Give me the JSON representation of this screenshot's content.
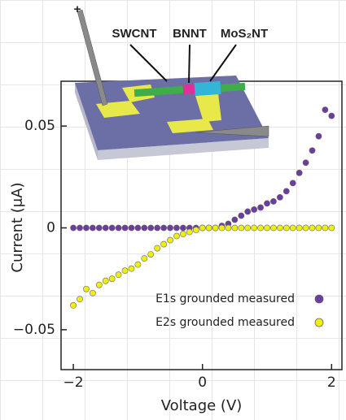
{
  "chart_data": {
    "type": "scatter",
    "xlabel": "Voltage (V)",
    "ylabel": "Current (μA)",
    "x": [
      -2.0,
      -1.9,
      -1.8,
      -1.7,
      -1.6,
      -1.5,
      -1.4,
      -1.3,
      -1.2,
      -1.1,
      -1.0,
      -0.9,
      -0.8,
      -0.7,
      -0.6,
      -0.5,
      -0.4,
      -0.3,
      -0.2,
      -0.1,
      0.0,
      0.1,
      0.2,
      0.3,
      0.4,
      0.5,
      0.6,
      0.7,
      0.8,
      0.9,
      1.0,
      1.1,
      1.2,
      1.3,
      1.4,
      1.5,
      1.6,
      1.7,
      1.8,
      1.9,
      2.0
    ],
    "series": [
      {
        "name": "E1s grounded measured",
        "color": "#6a3d9e",
        "values": [
          0,
          0,
          0,
          0,
          0,
          0,
          0,
          0,
          0,
          0,
          0,
          0,
          0,
          0,
          0,
          0,
          0,
          0,
          0,
          0,
          0,
          0,
          0,
          0.001,
          0.002,
          0.004,
          0.006,
          0.008,
          0.009,
          0.01,
          0.012,
          0.013,
          0.015,
          0.018,
          0.022,
          0.027,
          0.032,
          0.038,
          0.045,
          0.058,
          0.055
        ]
      },
      {
        "name": "E2s grounded measured",
        "color": "#eeee10",
        "values": [
          -0.038,
          -0.035,
          -0.03,
          -0.032,
          -0.028,
          -0.026,
          -0.025,
          -0.023,
          -0.021,
          -0.02,
          -0.018,
          -0.015,
          -0.013,
          -0.01,
          -0.008,
          -0.006,
          -0.004,
          -0.003,
          -0.002,
          -0.001,
          0,
          0,
          0,
          0,
          0,
          0,
          0,
          0,
          0,
          0,
          0,
          0,
          0,
          0,
          0,
          0,
          0,
          0,
          0,
          0,
          0
        ]
      }
    ],
    "xlim": [
      -2.19,
      2.16
    ],
    "ylim": [
      -0.0696,
      0.072
    ],
    "xticks": [
      {
        "value": -2,
        "label": "−2"
      },
      0,
      2
    ],
    "yticks": [
      {
        "value": -0.05,
        "label": "−0.05"
      },
      0,
      0.05
    ],
    "legend": "lower right",
    "annotations": [
      "SWCNT",
      "BNNT",
      "MoS₂NT",
      "+"
    ]
  }
}
